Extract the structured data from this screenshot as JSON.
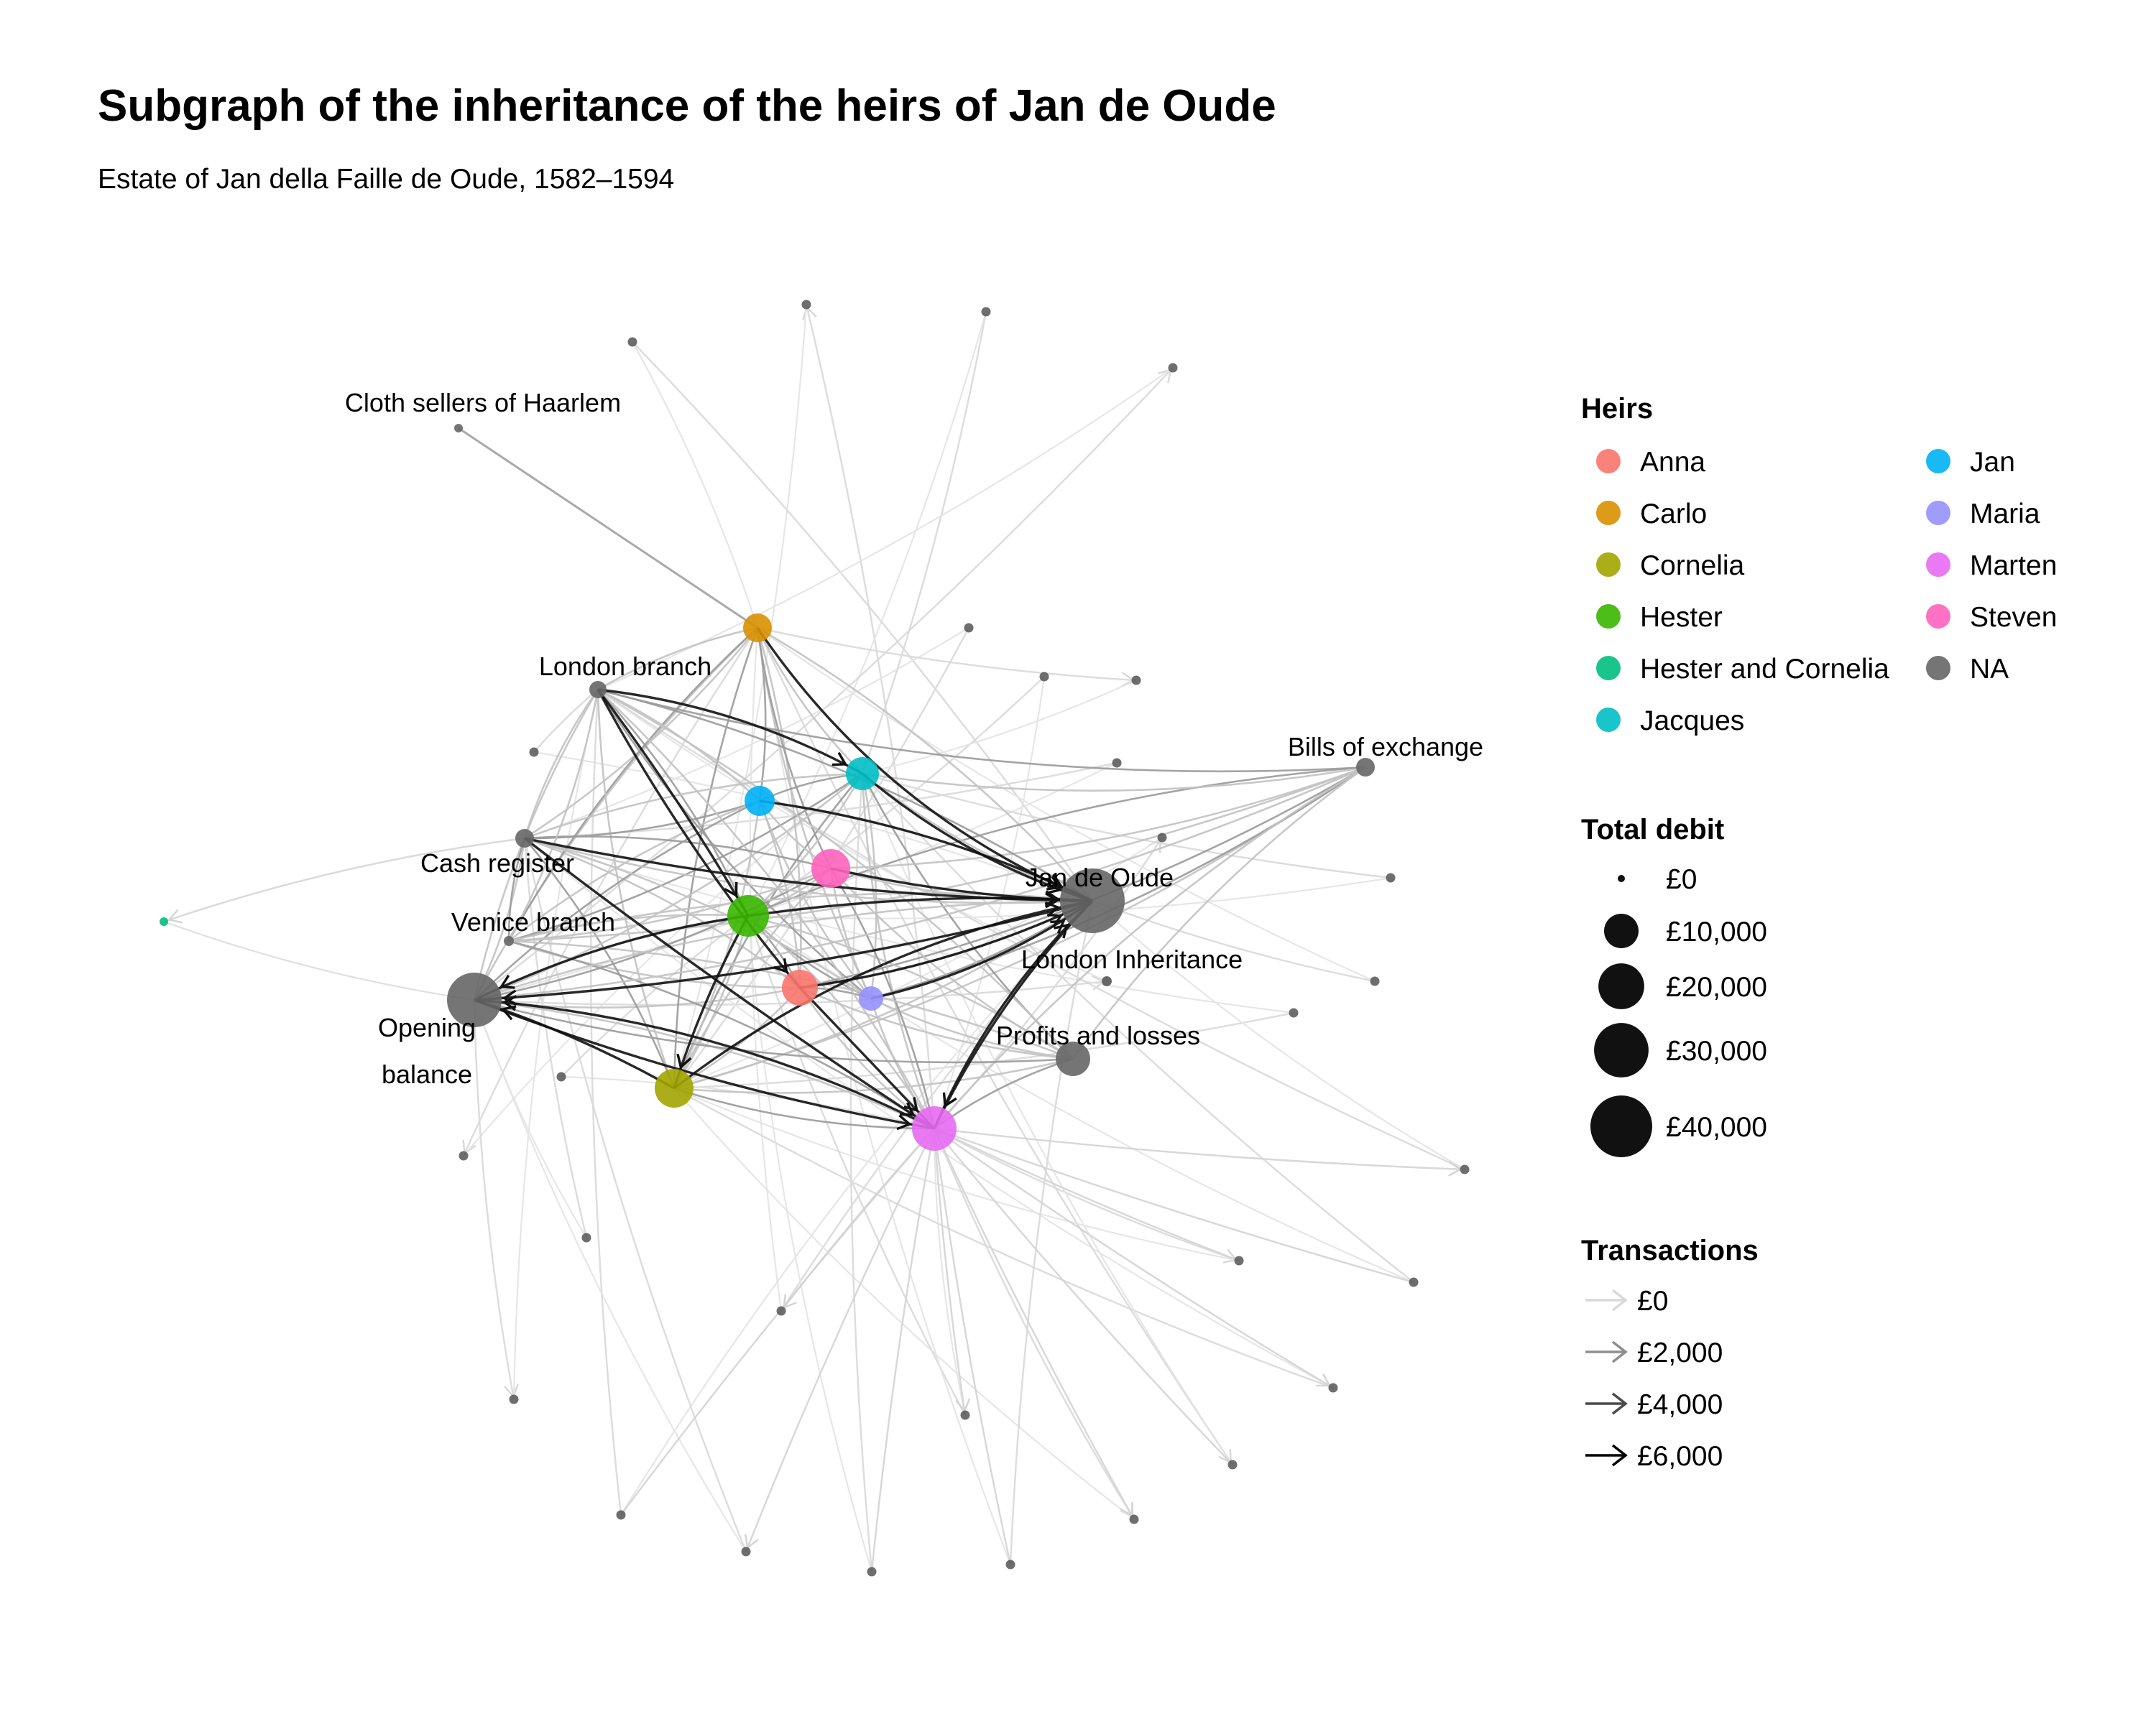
{
  "title": "Subgraph of the inheritance of the heirs of Jan de Oude",
  "subtitle": "Estate of Jan della Faille de Oude, 1582–1594",
  "colors": {
    "Anna": "#f8766d",
    "Carlo": "#d89000",
    "Cornelia": "#a3a500",
    "Hester": "#39b600",
    "Hester and Cornelia": "#00bf7d",
    "Jacques": "#00bfc4",
    "Jan": "#00b0f6",
    "Maria": "#9590ff",
    "Marten": "#e76bf3",
    "Steven": "#ff62bc",
    "NA": "#666666"
  },
  "legend": {
    "heirs": {
      "title": "Heirs",
      "items": [
        "Anna",
        "Carlo",
        "Cornelia",
        "Hester",
        "Hester and Cornelia",
        "Jacques",
        "Jan",
        "Maria",
        "Marten",
        "Steven",
        "NA"
      ]
    },
    "debit": {
      "title": "Total debit",
      "items": [
        {
          "label": "£0",
          "value": 0
        },
        {
          "label": "£10,000",
          "value": 10000
        },
        {
          "label": "£20,000",
          "value": 20000
        },
        {
          "label": "£30,000",
          "value": 30000
        },
        {
          "label": "£40,000",
          "value": 40000
        }
      ]
    },
    "transactions": {
      "title": "Transactions",
      "items": [
        {
          "label": "£0",
          "value": 0
        },
        {
          "label": "£2,000",
          "value": 2000
        },
        {
          "label": "£4,000",
          "value": 4000
        },
        {
          "label": "£6,000",
          "value": 6000
        }
      ]
    }
  },
  "node_labels": {
    "cloth": "Cloth sellers of Haarlem",
    "london_branch": "London branch",
    "bills": "Bills of exchange",
    "cash": "Cash register",
    "jan_de_oude": "Jan de Oude",
    "venice": "Venice branch",
    "london_inh": "London Inheritance",
    "opening_1": "Opening",
    "opening_2": "balance",
    "profits": "Profits and losses"
  }
}
